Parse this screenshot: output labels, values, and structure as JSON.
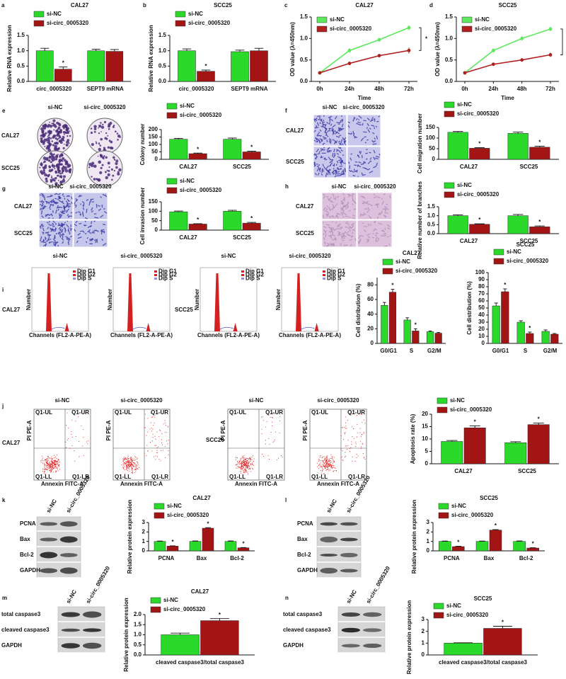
{
  "chart_data": [
    {
      "type": "bar",
      "panel": "a",
      "title": "CAL27",
      "ylabel": "Relative RNA expression",
      "categories": [
        "circ_0005320",
        "SEPT9 mRNA"
      ],
      "series": [
        {
          "name": "si-NC",
          "color": "#2bd92b",
          "values": [
            1.0,
            1.0
          ],
          "errors": [
            0.08,
            0.05
          ]
        },
        {
          "name": "si-circ_0005320",
          "color": "#a31515",
          "values": [
            0.4,
            0.98
          ],
          "errors": [
            0.07,
            0.06
          ],
          "labels": [
            "*",
            null
          ]
        }
      ],
      "ylim": [
        0,
        1.5
      ],
      "yticks": [
        {
          "value": 0,
          "label": "0.0"
        },
        {
          "value": 0.5,
          "label": "0.5"
        },
        {
          "value": 1,
          "label": "1.0"
        },
        {
          "value": 1.5,
          "label": "1.5"
        }
      ],
      "legend": "top-left"
    },
    {
      "type": "bar",
      "panel": "b",
      "title": "SCC25",
      "ylabel": "Relative RNA expression",
      "categories": [
        "circ_0005320",
        "SEPT9 mRNA"
      ],
      "series": [
        {
          "name": "si-NC",
          "color": "#2bd92b",
          "values": [
            1.0,
            0.97
          ],
          "errors": [
            0.06,
            0.05
          ]
        },
        {
          "name": "si-circ_0005320",
          "color": "#a31515",
          "values": [
            0.33,
            1.0
          ],
          "errors": [
            0.04,
            0.08
          ],
          "labels": [
            "*",
            null
          ]
        }
      ],
      "ylim": [
        0,
        1.5
      ],
      "yticks": [
        {
          "value": 0,
          "label": "0.0"
        },
        {
          "value": 0.5,
          "label": "0.5"
        },
        {
          "value": 1,
          "label": "1.0"
        },
        {
          "value": 1.5,
          "label": "1.5"
        }
      ],
      "legend": "top-left"
    },
    {
      "type": "line",
      "panel": "c",
      "title": "CAL27",
      "ylabel": "OD value (λ=450nm)",
      "xlabel": "Time",
      "categories": [
        "0h",
        "24h",
        "48h",
        "72h"
      ],
      "series": [
        {
          "name": "si-NC",
          "color": "#5ee85e",
          "values": [
            0.2,
            0.72,
            0.97,
            1.25
          ],
          "errors": [
            0.02,
            0.05,
            0.05,
            0.06
          ]
        },
        {
          "name": "si-circ_0005320",
          "color": "#b02020",
          "values": [
            0.2,
            0.42,
            0.6,
            0.72
          ],
          "errors": [
            0.02,
            0.04,
            0.04,
            0.07
          ]
        }
      ],
      "annotation": "*",
      "ylim": [
        0,
        1.5
      ],
      "yticks": [
        {
          "value": 0,
          "label": "0.0"
        },
        {
          "value": 0.5,
          "label": "0.5"
        },
        {
          "value": 1,
          "label": "1.0"
        },
        {
          "value": 1.5,
          "label": "1.5"
        }
      ],
      "legend": "top-left"
    },
    {
      "type": "line",
      "panel": "d",
      "title": "SCC25",
      "ylabel": "OD value (λ=450nm)",
      "xlabel": "Time",
      "categories": [
        "0h",
        "24h",
        "48h",
        "72h"
      ],
      "series": [
        {
          "name": "si-NC",
          "color": "#5ee85e",
          "values": [
            0.2,
            0.72,
            1.0,
            1.22
          ],
          "errors": [
            0.02,
            0.05,
            0.05,
            0.05
          ]
        },
        {
          "name": "si-circ_0005320",
          "color": "#b02020",
          "values": [
            0.2,
            0.4,
            0.5,
            0.62
          ],
          "errors": [
            0.02,
            0.04,
            0.04,
            0.05
          ]
        }
      ],
      "annotation": "*",
      "ylim": [
        0,
        1.5
      ],
      "yticks": [
        {
          "value": 0,
          "label": "0.0"
        },
        {
          "value": 0.5,
          "label": "0.5"
        },
        {
          "value": 1,
          "label": "1.0"
        },
        {
          "value": 1.5,
          "label": "1.5"
        }
      ],
      "legend": "top-left"
    },
    {
      "type": "bar",
      "ylabel": "Colony number",
      "categories": [
        "CAL27",
        "SCC25"
      ],
      "series": [
        {
          "name": "si-NC",
          "color": "#2bd92b",
          "values": [
            135,
            135
          ],
          "errors": [
            6,
            8
          ]
        },
        {
          "name": "si-circ_0005320",
          "color": "#a31515",
          "values": [
            38,
            50
          ],
          "errors": [
            4,
            5
          ],
          "labels": [
            "*",
            "*"
          ]
        }
      ],
      "ylim": [
        0,
        200
      ],
      "yticks": [
        0,
        50,
        100,
        150,
        200
      ],
      "legend": "top-left"
    },
    {
      "type": "bar",
      "ylabel": "Cell migration number",
      "categories": [
        "CAL27",
        "SCC25"
      ],
      "series": [
        {
          "name": "si-NC",
          "color": "#2bd92b",
          "values": [
            127,
            122
          ],
          "errors": [
            4,
            6
          ]
        },
        {
          "name": "si-circ_0005320",
          "color": "#a31515",
          "values": [
            52,
            57
          ],
          "errors": [
            3,
            5
          ],
          "labels": [
            "*",
            "*"
          ]
        }
      ],
      "ylim": [
        0,
        150
      ],
      "yticks": [
        0,
        50,
        100,
        150
      ],
      "legend": "top-left"
    },
    {
      "type": "bar",
      "ylabel": "Cell invasion number",
      "categories": [
        "CAL27",
        "SCC25"
      ],
      "series": [
        {
          "name": "si-NC",
          "color": "#2bd92b",
          "values": [
            97,
            100
          ],
          "errors": [
            4,
            5
          ]
        },
        {
          "name": "si-circ_0005320",
          "color": "#a31515",
          "values": [
            32,
            37
          ],
          "errors": [
            2,
            4
          ],
          "labels": [
            "*",
            "*"
          ]
        }
      ],
      "ylim": [
        0,
        150
      ],
      "yticks": [
        0,
        50,
        100,
        150
      ],
      "legend": "top-left"
    },
    {
      "type": "bar",
      "ylabel": "Relative number of branches",
      "categories": [
        "CAL27",
        "SCC25"
      ],
      "series": [
        {
          "name": "si-NC",
          "color": "#2bd92b",
          "values": [
            1.0,
            1.0
          ],
          "errors": [
            0.05,
            0.07
          ]
        },
        {
          "name": "si-circ_0005320",
          "color": "#a31515",
          "values": [
            0.52,
            0.38
          ],
          "errors": [
            0.03,
            0.05
          ],
          "labels": [
            "*",
            "*"
          ]
        }
      ],
      "ylim": [
        0,
        1.5
      ],
      "yticks": [
        {
          "value": 0,
          "label": "0.0"
        },
        {
          "value": 0.5,
          "label": "0.5"
        },
        {
          "value": 1,
          "label": "1.0"
        },
        {
          "value": 1.5,
          "label": "1.5"
        }
      ],
      "legend": "top-left"
    },
    {
      "type": "bar",
      "title": "CAL27",
      "ylabel": "Cell distribution (%)",
      "categories": [
        "G0/G1",
        "S",
        "G2/M"
      ],
      "series": [
        {
          "name": "si-NC",
          "color": "#2bd92b",
          "values": [
            52,
            32,
            16
          ],
          "errors": [
            4,
            3,
            1
          ]
        },
        {
          "name": "si-circ_0005320",
          "color": "#a31515",
          "values": [
            70,
            17,
            14
          ],
          "errors": [
            4,
            3,
            1
          ],
          "labels": [
            "*",
            "*",
            null
          ]
        }
      ],
      "ylim": [
        0,
        90
      ],
      "yticks": [
        0,
        20,
        40,
        60,
        80
      ],
      "legend": "top-left"
    },
    {
      "type": "bar",
      "title": "SCC25",
      "ylabel": "Cell distribution (%)",
      "categories": [
        "G0/G1",
        "S",
        "G2/M"
      ],
      "series": [
        {
          "name": "si-NC",
          "color": "#2bd92b",
          "values": [
            53,
            30,
            17
          ],
          "errors": [
            4,
            2,
            2
          ]
        },
        {
          "name": "si-circ_0005320",
          "color": "#a31515",
          "values": [
            73,
            14,
            13
          ],
          "errors": [
            4,
            2,
            1
          ],
          "labels": [
            "*",
            "*",
            null
          ]
        }
      ],
      "ylim": [
        0,
        100
      ],
      "yticks": [
        0,
        10,
        20,
        30,
        40,
        50,
        60,
        70,
        80,
        90,
        100
      ],
      "legend": "top-left"
    },
    {
      "type": "bar",
      "ylabel": "Apoptosis rate (%)",
      "categories": [
        "CAL27",
        "SCC25"
      ],
      "series": [
        {
          "name": "si-NC",
          "color": "#2bd92b",
          "values": [
            9,
            8.5
          ],
          "errors": [
            0.4,
            0.4
          ]
        },
        {
          "name": "si-circ_0005320",
          "color": "#a31515",
          "values": [
            14.5,
            15.8
          ],
          "errors": [
            0.8,
            0.6
          ],
          "labels": [
            "*",
            "*"
          ]
        }
      ],
      "ylim": [
        0,
        20
      ],
      "yticks": [
        0,
        5,
        10,
        15,
        20
      ],
      "legend": "top-left"
    },
    {
      "type": "bar",
      "title": "CAL27",
      "ylabel": "Relative protein expression",
      "categories": [
        "PCNA",
        "Bax",
        "Bcl-2"
      ],
      "series": [
        {
          "name": "si-NC",
          "color": "#2bd92b",
          "values": [
            1.0,
            1.0,
            1.0
          ],
          "errors": [
            0.04,
            0.05,
            0.05
          ]
        },
        {
          "name": "si-circ_0005320",
          "color": "#a31515",
          "values": [
            0.5,
            2.4,
            0.32
          ],
          "errors": [
            0.03,
            0.06,
            0.03
          ],
          "labels": [
            "*",
            "*",
            "*"
          ]
        }
      ],
      "ylim": [
        0,
        3
      ],
      "yticks": [
        0,
        1,
        2,
        3
      ],
      "legend": "top-left"
    },
    {
      "type": "bar",
      "title": "SCC25",
      "ylabel": "Relative protein expression",
      "categories": [
        "PCNA",
        "Bax",
        "Bcl-2"
      ],
      "series": [
        {
          "name": "si-NC",
          "color": "#2bd92b",
          "values": [
            1.0,
            1.0,
            1.0
          ],
          "errors": [
            0.04,
            0.04,
            0.05
          ]
        },
        {
          "name": "si-circ_0005320",
          "color": "#a31515",
          "values": [
            0.45,
            2.2,
            0.3
          ],
          "errors": [
            0.04,
            0.05,
            0.03
          ],
          "labels": [
            "*",
            "*",
            "*"
          ]
        }
      ],
      "ylim": [
        0,
        3
      ],
      "yticks": [
        0,
        1,
        2,
        3
      ],
      "legend": "top-left"
    },
    {
      "type": "bar",
      "title": "CAL27",
      "ylabel": "Relative protein expression",
      "categories": [
        "cleaved caspase3/total caspase3"
      ],
      "series": [
        {
          "name": "si-NC",
          "color": "#2bd92b",
          "values": [
            1.0
          ],
          "errors": [
            0.08
          ]
        },
        {
          "name": "si-circ_0005320",
          "color": "#a31515",
          "values": [
            1.7
          ],
          "errors": [
            0.1
          ],
          "labels": [
            "*"
          ]
        }
      ],
      "ylim": [
        0,
        2
      ],
      "yticks": [
        {
          "value": 0,
          "label": "0.0"
        },
        {
          "value": 0.5,
          "label": "0.5"
        },
        {
          "value": 1,
          "label": "1.0"
        },
        {
          "value": 1.5,
          "label": "1.5"
        },
        {
          "value": 2,
          "label": "2.0"
        }
      ],
      "legend": "top-left"
    },
    {
      "type": "bar",
      "title": "SCC25",
      "ylabel": "Relative protein expression",
      "categories": [
        "cleaved caspase3/total caspase3"
      ],
      "series": [
        {
          "name": "si-NC",
          "color": "#2bd92b",
          "values": [
            1.0
          ],
          "errors": [
            0.03
          ]
        },
        {
          "name": "si-circ_0005320",
          "color": "#a31515",
          "values": [
            2.25
          ],
          "errors": [
            0.18
          ],
          "labels": [
            "*"
          ]
        }
      ],
      "ylim": [
        0,
        3
      ],
      "yticks": [
        0,
        1,
        2,
        3
      ],
      "legend": "top-left"
    }
  ],
  "image_panels": [
    {
      "panel": "e",
      "columns": [
        "si-NC",
        "si-circ_0005320"
      ],
      "rows": [
        "CAL27",
        "SCC25"
      ]
    },
    {
      "panel": "f",
      "columns": [
        "si-NC",
        "si-circ_0005320"
      ],
      "rows": [
        "CAL27",
        "SCC25"
      ]
    },
    {
      "panel": "g",
      "columns": [
        "si-NC",
        "si-circ_0005320"
      ],
      "rows": [
        "CAL27",
        "SCC25"
      ]
    },
    {
      "panel": "h",
      "columns": [
        "si-NC",
        "si-circ_0005320"
      ],
      "rows": [
        "CAL27",
        "SCC25"
      ]
    },
    {
      "panel": "i",
      "columns": [
        "si-NC",
        "si-circ_0005320",
        "si-NC",
        "si-circ_0005320"
      ],
      "rows": [
        "CAL27",
        "SCC25"
      ],
      "legend": [
        "Dip G1",
        "Dip G2",
        "Dip S"
      ],
      "x_axis_label": "Channels (FL2-A-PE-A)",
      "y_axis_label": "Number"
    },
    {
      "panel": "j",
      "columns": [
        "si-NC",
        "si-circ_0005320",
        "si-NC",
        "si-circ_0005320"
      ],
      "rows": [
        "CAL27",
        "SCC25"
      ],
      "quadrants": [
        "Q1-UL",
        "Q1-UR",
        "Q1-LL",
        "Q1-LR"
      ],
      "x_axis_label": "Annexin FITC-A",
      "y_axis_label": "PI PE-A"
    },
    {
      "panel": "k",
      "lanes": [
        "si-NC",
        "si-circ_0005320"
      ],
      "bands": [
        "PCNA",
        "Bax",
        "Bcl-2",
        "GAPDH"
      ]
    },
    {
      "panel": "l",
      "lanes": [
        "si-NC",
        "si-circ_0005320"
      ],
      "bands": [
        "PCNA",
        "Bax",
        "Bcl-2",
        "GAPDH"
      ]
    },
    {
      "panel": "m",
      "lanes": [
        "si-NC",
        "si-circ_0005320"
      ],
      "bands": [
        "total caspase3",
        "cleaved caspase3",
        "GAPDH"
      ]
    },
    {
      "panel": "n",
      "lanes": [
        "si-NC",
        "si-circ_0005320"
      ],
      "bands": [
        "total caspase3",
        "cleaved caspase3",
        "GAPDH"
      ]
    }
  ]
}
